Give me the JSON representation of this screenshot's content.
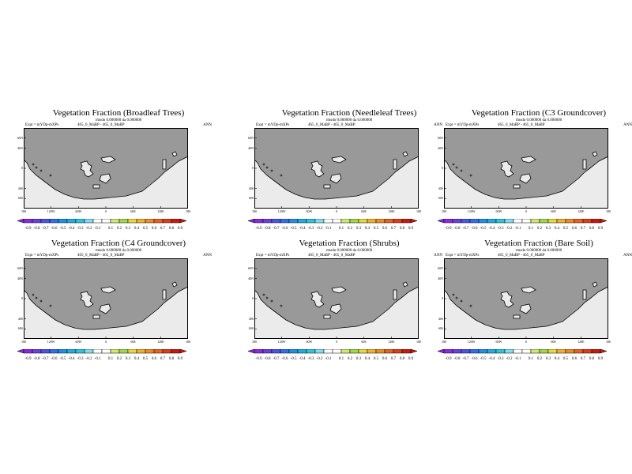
{
  "chart_data": [
    {
      "type": "heatmap",
      "title": "Vegetation Fraction (Broadleaf Trees)",
      "stats": "rmsdo 0.000000 da 0.000000",
      "expt_label": "Expt = mYDp-mXPs",
      "case_label": "465_0_MaBP - 465_0_MaBP",
      "season": "ANN",
      "field": "difference",
      "value_shown": 0.0
    },
    {
      "type": "heatmap",
      "title": "Vegetation Fraction (Needleleaf Trees)",
      "stats": "rmsdo 0.000000 da 0.000000",
      "expt_label": "Expt = mYDp-mXPs",
      "case_label": "465_0_MaBP - 465_0_MaBP",
      "season": "ANN",
      "field": "difference",
      "value_shown": 0.0
    },
    {
      "type": "heatmap",
      "title": "Vegetation Fraction (C3 Groundcover)",
      "stats": "rmsdo 0.000000 da 0.000000",
      "expt_label": "Expt = mYDp-mXPs",
      "case_label": "465_0_MaBP - 465_0_MaBP",
      "season": "ANN",
      "field": "difference",
      "value_shown": 0.0
    },
    {
      "type": "heatmap",
      "title": "Vegetation Fraction (C4 Groundcover)",
      "stats": "rmsdo 0.000000 da 0.000000",
      "expt_label": "Expt = mYDp-mXPs",
      "case_label": "465_0_MaBP - 465_0_MaBP",
      "season": "ANN",
      "field": "difference",
      "value_shown": 0.0
    },
    {
      "type": "heatmap",
      "title": "Vegetation Fraction (Shrubs)",
      "stats": "rmsdo 0.000000 da 0.000000",
      "expt_label": "Expt = mYDp-mXPs",
      "case_label": "465_0_MaBP - 465_0_MaBP",
      "season": "ANN",
      "field": "difference",
      "value_shown": 0.0
    },
    {
      "type": "heatmap",
      "title": "Vegetation Fraction (Bare Soil)",
      "stats": "rmsdo 0.000000 da 0.000000",
      "expt_label": "Expt = mYDp-mXPs",
      "case_label": "465_0_MaBP - 465_0_MaBP",
      "season": "ANN",
      "field": "difference",
      "value_shown": 0.0
    }
  ],
  "axes": {
    "lat_ticks": [
      "60N",
      "40N",
      "0",
      "40S",
      "60S"
    ],
    "lat_values": [
      60,
      40,
      0,
      -40,
      -60
    ],
    "lat_range": [
      -80,
      80
    ],
    "lon_ticks": [
      "180",
      "120W",
      "60W",
      "0",
      "60E",
      "120E",
      "180"
    ],
    "lon_values": [
      -180,
      -120,
      -60,
      0,
      60,
      120,
      180
    ],
    "lon_range": [
      -180,
      180
    ]
  },
  "colorbar": {
    "labels": [
      "-0.9",
      "-0.8",
      "-0.7",
      "-0.6",
      "-0.5",
      "-0.4",
      "-0.3",
      "-0.2",
      "-0.1",
      "0.1",
      "0.2",
      "0.3",
      "0.4",
      "0.5",
      "0.6",
      "0.7",
      "0.8",
      "0.9"
    ],
    "colors": [
      "#8a2be2",
      "#6a3fe0",
      "#4a55e8",
      "#2f6ff0",
      "#1f8fe8",
      "#20aee0",
      "#2cc6d8",
      "#7fdcf0",
      "#ffffff",
      "#ffffff",
      "#cfe870",
      "#9fd84a",
      "#e8d840",
      "#f0b030",
      "#f08a25",
      "#e8621e",
      "#e03a18",
      "#c81a10"
    ]
  },
  "colors": {
    "land_fill": "#999999",
    "ocean_fill": "#ebebeb",
    "outline": "#000000"
  }
}
